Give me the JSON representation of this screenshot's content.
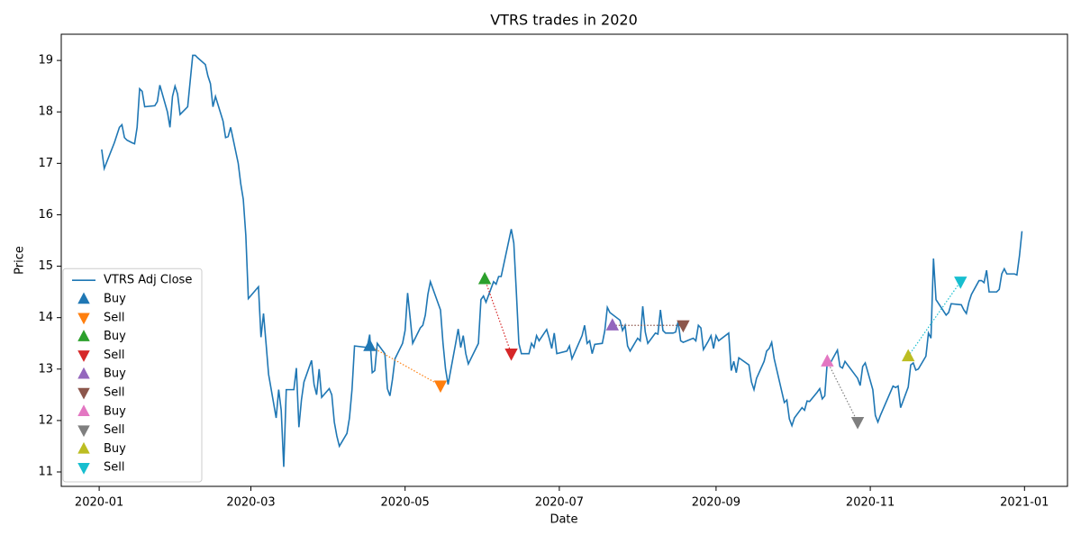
{
  "chart_data": {
    "type": "line",
    "title": "VTRS trades in 2020",
    "xlabel": "Date",
    "ylabel": "Price",
    "xlim": [
      -15,
      383
    ],
    "xticks": [
      {
        "value": 0,
        "label": "2020-01"
      },
      {
        "value": 60,
        "label": "2020-03"
      },
      {
        "value": 121,
        "label": "2020-05"
      },
      {
        "value": 182,
        "label": "2020-07"
      },
      {
        "value": 244,
        "label": "2020-09"
      },
      {
        "value": 305,
        "label": "2020-11"
      },
      {
        "value": 366,
        "label": "2021-01"
      }
    ],
    "ylim": [
      10.72,
      19.51
    ],
    "yticks": [
      11,
      12,
      13,
      14,
      15,
      16,
      17,
      18,
      19
    ],
    "legend": "lower left",
    "series": [
      {
        "name": "VTRS Adj Close",
        "color": "#1f77b4",
        "marker": "line",
        "x": [
          1,
          2,
          6,
          8,
          9,
          10,
          11,
          13,
          14,
          15,
          16,
          17,
          18,
          22,
          23,
          24,
          27,
          28,
          29,
          30,
          31,
          32,
          35,
          36,
          37,
          38,
          39,
          42,
          43,
          44,
          45,
          46,
          49,
          50,
          51,
          52,
          55,
          56,
          57,
          58,
          59,
          63,
          64,
          65,
          66,
          67,
          70,
          71,
          72,
          73,
          74,
          77,
          78,
          79,
          80,
          81,
          84,
          85,
          86,
          87,
          88,
          91,
          92,
          93,
          94,
          95,
          98,
          99,
          100,
          101,
          106,
          107,
          108,
          109,
          110,
          113,
          114,
          115,
          116,
          117,
          120,
          121,
          122,
          123,
          124,
          127,
          128,
          129,
          130,
          131,
          135,
          136,
          137,
          138,
          141,
          142,
          143,
          144,
          145,
          146,
          150,
          151,
          152,
          153,
          156,
          157,
          158,
          159,
          163,
          164,
          165,
          166,
          167,
          170,
          171,
          172,
          173,
          174,
          177,
          178,
          179,
          180,
          181,
          185,
          186,
          187,
          191,
          192,
          193,
          194,
          195,
          196,
          199,
          200,
          201,
          202,
          206,
          207,
          208,
          209,
          210,
          213,
          214,
          215,
          216,
          217,
          220,
          221,
          222,
          223,
          224,
          227,
          228,
          229,
          230,
          231,
          234,
          235,
          236,
          237,
          238,
          239,
          241,
          242,
          243,
          244,
          245,
          249,
          250,
          251,
          252,
          253,
          257,
          258,
          259,
          260,
          263,
          264,
          265,
          266,
          267,
          271,
          272,
          273,
          274,
          275,
          278,
          279,
          280,
          281,
          284,
          285,
          286,
          287,
          288,
          289,
          292,
          293,
          294,
          295,
          300,
          301,
          302,
          303,
          306,
          307,
          308,
          309,
          314,
          315,
          316,
          317,
          320,
          321,
          322,
          323,
          324,
          327,
          328,
          329,
          330,
          331,
          335,
          336,
          337,
          341,
          342,
          343,
          344,
          345,
          348,
          349,
          350,
          351,
          352,
          355,
          356,
          357,
          358,
          359,
          362,
          363,
          364,
          365
        ],
        "values": [
          17.27,
          16.9,
          17.4,
          17.7,
          17.75,
          17.5,
          17.45,
          17.4,
          17.38,
          17.7,
          18.45,
          18.4,
          18.1,
          18.12,
          18.2,
          18.52,
          18.0,
          17.7,
          18.3,
          18.5,
          18.35,
          17.95,
          18.1,
          18.6,
          19.1,
          19.1,
          19.05,
          18.92,
          18.7,
          18.55,
          18.1,
          18.3,
          17.82,
          17.5,
          17.52,
          17.7,
          17.0,
          16.6,
          16.3,
          15.6,
          14.37,
          14.6,
          13.62,
          14.08,
          13.5,
          12.9,
          12.05,
          12.6,
          12.2,
          11.1,
          12.6,
          12.6,
          13.02,
          11.87,
          12.4,
          12.75,
          13.17,
          12.7,
          12.5,
          13.0,
          12.45,
          12.62,
          12.5,
          11.97,
          11.7,
          11.5,
          11.75,
          12.05,
          12.6,
          13.45,
          13.42,
          13.67,
          12.93,
          12.97,
          13.5,
          13.3,
          12.62,
          12.48,
          12.8,
          13.2,
          13.5,
          13.75,
          14.48,
          14.0,
          13.5,
          13.8,
          13.85,
          14.05,
          14.45,
          14.7,
          14.15,
          13.5,
          13.0,
          12.7,
          13.5,
          13.78,
          13.42,
          13.65,
          13.3,
          13.1,
          13.5,
          14.35,
          14.42,
          14.3,
          14.7,
          14.65,
          14.8,
          14.8,
          15.72,
          15.45,
          14.5,
          13.5,
          13.3,
          13.3,
          13.5,
          13.42,
          13.65,
          13.55,
          13.77,
          13.6,
          13.4,
          13.7,
          13.3,
          13.35,
          13.45,
          13.2,
          13.65,
          13.85,
          13.5,
          13.55,
          13.3,
          13.48,
          13.5,
          13.75,
          14.2,
          14.1,
          13.95,
          13.75,
          13.85,
          13.45,
          13.35,
          13.6,
          13.55,
          14.22,
          13.72,
          13.5,
          13.7,
          13.68,
          14.15,
          13.75,
          13.7,
          13.7,
          13.72,
          13.92,
          13.55,
          13.52,
          13.58,
          13.6,
          13.55,
          13.85,
          13.8,
          13.38,
          13.55,
          13.65,
          13.4,
          13.65,
          13.55,
          13.7,
          12.97,
          13.15,
          12.93,
          13.22,
          13.08,
          12.75,
          12.6,
          12.82,
          13.15,
          13.35,
          13.4,
          13.52,
          13.2,
          12.35,
          12.4,
          12.03,
          11.9,
          12.05,
          12.25,
          12.2,
          12.38,
          12.37,
          12.55,
          12.62,
          12.42,
          12.48,
          13.15,
          13.1,
          13.37,
          13.05,
          13.02,
          13.15,
          12.82,
          12.68,
          13.05,
          13.12,
          12.6,
          12.1,
          11.97,
          12.1,
          12.67,
          12.64,
          12.67,
          12.25,
          12.65,
          13.08,
          13.12,
          12.98,
          13.0,
          13.25,
          13.7,
          13.6,
          15.15,
          14.35,
          14.05,
          14.1,
          14.27,
          14.25,
          14.15,
          14.08,
          14.3,
          14.45,
          14.72,
          14.72,
          14.68,
          14.92,
          14.5,
          14.5,
          14.55,
          14.85,
          14.95,
          14.85,
          14.85,
          14.83,
          15.2,
          15.68
        ]
      },
      {
        "name": "Buy",
        "color": "#1f77b4",
        "marker": "up",
        "x": [
          107
        ],
        "values": [
          13.45
        ]
      },
      {
        "name": "Sell",
        "color": "#ff7f0e",
        "marker": "down",
        "x": [
          135
        ],
        "values": [
          12.68
        ]
      },
      {
        "name": "Buy",
        "color": "#2ca02c",
        "marker": "up",
        "x": [
          152.5
        ],
        "values": [
          14.75
        ]
      },
      {
        "name": "Sell",
        "color": "#d62728",
        "marker": "down",
        "x": [
          163
        ],
        "values": [
          13.3
        ]
      },
      {
        "name": "Buy",
        "color": "#9467bd",
        "marker": "up",
        "x": [
          203
        ],
        "values": [
          13.85
        ]
      },
      {
        "name": "Sell",
        "color": "#8c564b",
        "marker": "down",
        "x": [
          231
        ],
        "values": [
          13.85
        ]
      },
      {
        "name": "Buy",
        "color": "#e377c2",
        "marker": "up",
        "x": [
          288
        ],
        "values": [
          13.15
        ]
      },
      {
        "name": "Sell",
        "color": "#7f7f7f",
        "marker": "down",
        "x": [
          300
        ],
        "values": [
          11.97
        ]
      },
      {
        "name": "Buy",
        "color": "#bcbd22",
        "marker": "up",
        "x": [
          320
        ],
        "values": [
          13.25
        ]
      },
      {
        "name": "Sell",
        "color": "#17becf",
        "marker": "down",
        "x": [
          340.7
        ],
        "values": [
          14.7
        ]
      }
    ]
  }
}
